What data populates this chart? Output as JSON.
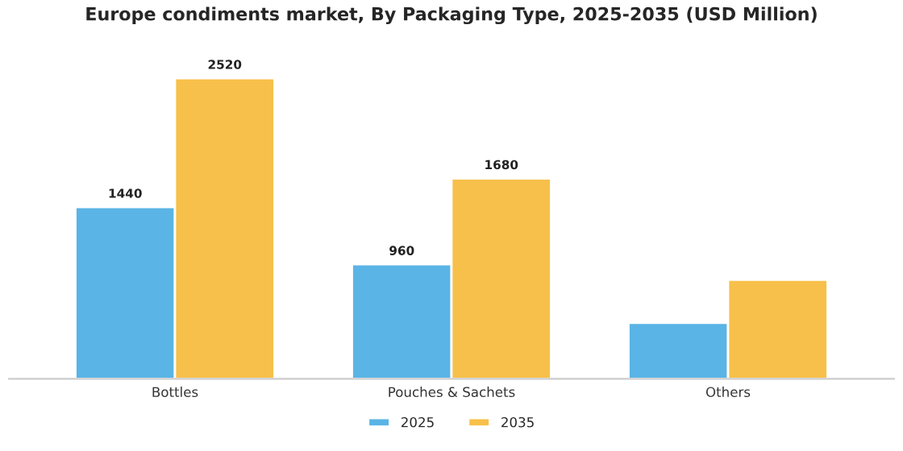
{
  "chart_data": {
    "type": "bar",
    "title": "Europe condiments market, By Packaging Type, 2025-2035 (USD Million)",
    "categories": [
      "Bottles",
      "Pouches & Sachets",
      "Others"
    ],
    "series": [
      {
        "name": "2025",
        "color": "#5ab4e5",
        "values": [
          1440,
          960,
          470
        ],
        "value_labels": [
          "1440",
          "960",
          null
        ]
      },
      {
        "name": "2035",
        "color": "#f7c04a",
        "values": [
          2520,
          1680,
          830
        ],
        "value_labels": [
          "2520",
          "1680",
          null
        ]
      }
    ],
    "legend": "bottom",
    "grid": false
  }
}
